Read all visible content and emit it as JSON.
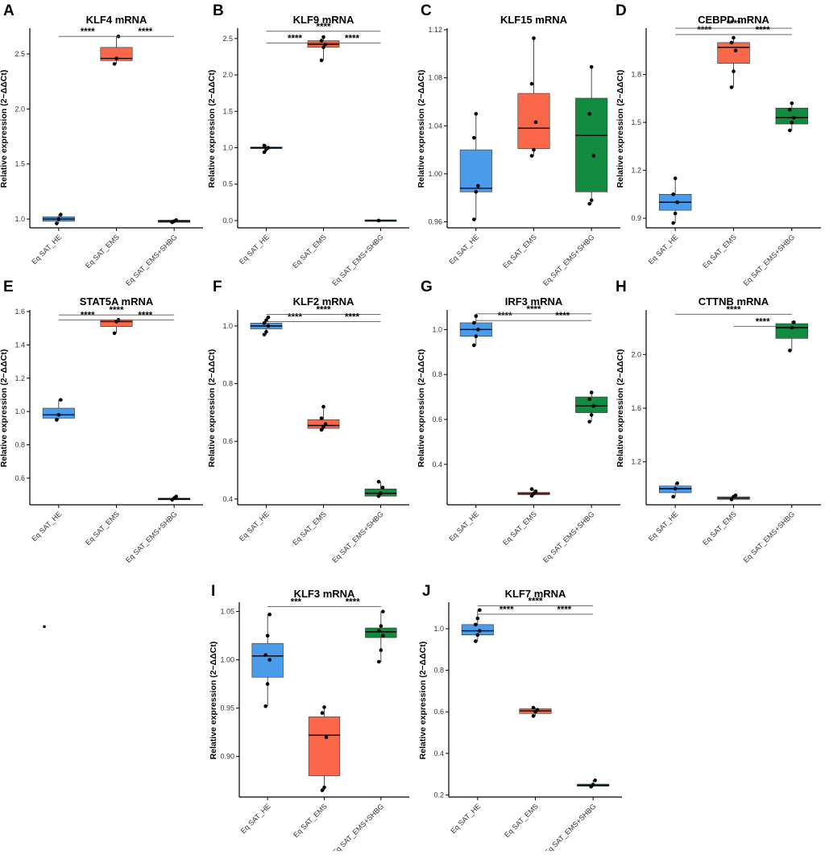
{
  "colors": {
    "group1": "#4a9bea",
    "group2": "#fa6849",
    "group3": "#128a3f",
    "axis": "#000000",
    "bracket": "#555555"
  },
  "stray_mark": ".",
  "panels": [
    {
      "id": "A",
      "title": "KLF4 mRNA",
      "ylabel": "Relative expression (2−ΔΔCt)",
      "categories": [
        "Eq SAT_HE",
        "Eq SAT_EMS",
        "Eq SAT_EMS+SHBG"
      ],
      "ylim": [
        0.92,
        2.72
      ],
      "yticks": [
        1.0,
        1.5,
        2.0,
        2.5
      ],
      "boxes": [
        {
          "q1": 0.98,
          "median": 1.0,
          "q3": 1.02,
          "low": 0.96,
          "high": 1.04,
          "points": [
            0.96,
            1.0,
            1.04
          ]
        },
        {
          "q1": 2.44,
          "median": 2.46,
          "q3": 2.56,
          "low": 2.41,
          "high": 2.66,
          "points": [
            2.41,
            2.46,
            2.66
          ]
        },
        {
          "q1": 0.97,
          "median": 0.98,
          "q3": 0.99,
          "low": 0.97,
          "high": 0.99,
          "points": [
            0.97,
            0.98,
            0.99
          ]
        }
      ],
      "brackets": [
        {
          "from": 0,
          "to": 1,
          "y": 2.66,
          "label": "****"
        },
        {
          "from": 1,
          "to": 2,
          "y": 2.66,
          "label": "****"
        }
      ]
    },
    {
      "id": "B",
      "title": "KLF9 mRNA",
      "ylabel": "Relative expression (2−ΔΔCt)",
      "categories": [
        "Eq SAT_HE",
        "Eq SAT_EMS",
        "Eq SAT_EMS+SHBG"
      ],
      "ylim": [
        -0.1,
        2.62
      ],
      "yticks": [
        0.0,
        0.5,
        1.0,
        1.5,
        2.0,
        2.5
      ],
      "boxes": [
        {
          "q1": 0.99,
          "median": 1.0,
          "q3": 1.01,
          "low": 0.94,
          "high": 1.04,
          "points": [
            0.94,
            0.98,
            1.0,
            1.03
          ]
        },
        {
          "q1": 2.38,
          "median": 2.42,
          "q3": 2.47,
          "low": 2.2,
          "high": 2.52,
          "points": [
            2.2,
            2.38,
            2.42,
            2.47,
            2.52
          ]
        },
        {
          "q1": 0.0,
          "median": 0.0,
          "q3": 0.01,
          "low": 0.0,
          "high": 0.01,
          "points": [
            0.0
          ]
        }
      ],
      "brackets": [
        {
          "from": 0,
          "to": 1,
          "y": 2.44,
          "label": "****"
        },
        {
          "from": 0,
          "to": 2,
          "y": 2.6,
          "label": "****"
        },
        {
          "from": 1,
          "to": 2,
          "y": 2.44,
          "label": "****"
        }
      ]
    },
    {
      "id": "C",
      "title": "KLF15 mRNA",
      "ylabel": "Relative expression (2−ΔΔCt)",
      "categories": [
        "Eq SAT_HE",
        "Eq SAT_EMS",
        "Eq SAT_EMS+SHBG"
      ],
      "ylim": [
        0.955,
        1.12
      ],
      "yticks": [
        0.96,
        1.0,
        1.04,
        1.08,
        1.12
      ],
      "boxes": [
        {
          "q1": 0.985,
          "median": 0.988,
          "q3": 1.02,
          "low": 0.962,
          "high": 1.05,
          "points": [
            0.962,
            0.985,
            0.99,
            1.03,
            1.05
          ]
        },
        {
          "q1": 1.021,
          "median": 1.038,
          "q3": 1.067,
          "low": 1.015,
          "high": 1.113,
          "points": [
            1.015,
            1.02,
            1.043,
            1.075,
            1.113
          ]
        },
        {
          "q1": 0.985,
          "median": 1.032,
          "q3": 1.063,
          "low": 0.975,
          "high": 1.089,
          "points": [
            0.975,
            0.978,
            1.015,
            1.05,
            1.089
          ]
        }
      ],
      "brackets": []
    },
    {
      "id": "D",
      "title": "CEBPD mRNA",
      "ylabel": "Relative expression (2−ΔΔCt)",
      "categories": [
        "Eq SAT_HE",
        "Eq SAT_EMS",
        "Eq SAT_EMS+SHBG"
      ],
      "ylim": [
        0.84,
        2.08
      ],
      "yticks": [
        0.9,
        1.2,
        1.5,
        1.8
      ],
      "boxes": [
        {
          "q1": 0.95,
          "median": 1.0,
          "q3": 1.05,
          "low": 0.87,
          "high": 1.15,
          "points": [
            0.87,
            0.93,
            1.0,
            1.05,
            1.15
          ]
        },
        {
          "q1": 1.87,
          "median": 1.97,
          "q3": 2.0,
          "low": 1.72,
          "high": 2.04,
          "points": [
            1.72,
            1.82,
            1.95,
            2.0,
            2.03
          ]
        },
        {
          "q1": 1.49,
          "median": 1.53,
          "q3": 1.59,
          "low": 1.45,
          "high": 1.63,
          "points": [
            1.45,
            1.5,
            1.53,
            1.58,
            1.62
          ]
        }
      ],
      "brackets": [
        {
          "from": 0,
          "to": 1,
          "y": 2.05,
          "label": "****"
        },
        {
          "from": 0,
          "to": 2,
          "y": 2.09,
          "label": "****"
        },
        {
          "from": 1,
          "to": 2,
          "y": 2.05,
          "label": "****"
        }
      ]
    },
    {
      "id": "E",
      "title": "STAT5A mRNA",
      "ylabel": "Relative expression (2−ΔΔCt)",
      "categories": [
        "Eq SAT_HE",
        "Eq SAT_EMS",
        "Eq SAT_EMS+SHBG"
      ],
      "ylim": [
        0.44,
        1.6
      ],
      "yticks": [
        0.6,
        0.8,
        1.0,
        1.2,
        1.4,
        1.6
      ],
      "boxes": [
        {
          "q1": 0.96,
          "median": 0.98,
          "q3": 1.02,
          "low": 0.95,
          "high": 1.07,
          "points": [
            0.95,
            0.98,
            1.07
          ]
        },
        {
          "q1": 1.51,
          "median": 1.54,
          "q3": 1.55,
          "low": 1.47,
          "high": 1.55,
          "points": [
            1.47,
            1.54,
            1.55
          ]
        },
        {
          "q1": 0.47,
          "median": 0.475,
          "q3": 0.48,
          "low": 0.47,
          "high": 0.49,
          "points": [
            0.47,
            0.48,
            0.49
          ]
        }
      ],
      "brackets": [
        {
          "from": 0,
          "to": 1,
          "y": 1.55,
          "label": "****"
        },
        {
          "from": 0,
          "to": 2,
          "y": 1.58,
          "label": "****"
        },
        {
          "from": 1,
          "to": 2,
          "y": 1.55,
          "label": "****"
        }
      ]
    },
    {
      "id": "F",
      "title": "KLF2 mRNA",
      "ylabel": "Relative expression (2−ΔΔCt)",
      "categories": [
        "Eq SAT_HE",
        "Eq SAT_EMS",
        "Eq SAT_EMS+SHBG"
      ],
      "ylim": [
        0.38,
        1.05
      ],
      "yticks": [
        0.4,
        0.6,
        0.8,
        1.0
      ],
      "boxes": [
        {
          "q1": 0.99,
          "median": 1.0,
          "q3": 1.01,
          "low": 0.97,
          "high": 1.03,
          "points": [
            0.97,
            0.98,
            1.0,
            1.01,
            1.02,
            1.03
          ]
        },
        {
          "q1": 0.645,
          "median": 0.655,
          "q3": 0.675,
          "low": 0.64,
          "high": 0.72,
          "points": [
            0.64,
            0.65,
            0.66,
            0.68,
            0.72
          ]
        },
        {
          "q1": 0.41,
          "median": 0.42,
          "q3": 0.435,
          "low": 0.41,
          "high": 0.46,
          "points": [
            0.41,
            0.42,
            0.44,
            0.46
          ]
        }
      ],
      "brackets": [
        {
          "from": 0,
          "to": 1,
          "y": 1.015,
          "label": "****"
        },
        {
          "from": 0,
          "to": 2,
          "y": 1.04,
          "label": "****"
        },
        {
          "from": 1,
          "to": 2,
          "y": 1.015,
          "label": "****"
        }
      ]
    },
    {
      "id": "G",
      "title": "IRF3 mRNA",
      "ylabel": "Relative expression (2−ΔΔCt)",
      "categories": [
        "Eq SAT_HE",
        "Eq SAT_EMS",
        "Eq SAT_EMS+SHBG"
      ],
      "ylim": [
        0.22,
        1.08
      ],
      "yticks": [
        0.4,
        0.6,
        0.8,
        1.0
      ],
      "boxes": [
        {
          "q1": 0.97,
          "median": 1.0,
          "q3": 1.03,
          "low": 0.93,
          "high": 1.06,
          "points": [
            0.93,
            0.97,
            1.0,
            1.03,
            1.06
          ]
        },
        {
          "q1": 0.265,
          "median": 0.27,
          "q3": 0.275,
          "low": 0.26,
          "high": 0.29,
          "points": [
            0.26,
            0.27,
            0.28,
            0.29
          ]
        },
        {
          "q1": 0.63,
          "median": 0.66,
          "q3": 0.7,
          "low": 0.59,
          "high": 0.72,
          "points": [
            0.59,
            0.62,
            0.66,
            0.69,
            0.72
          ]
        }
      ],
      "brackets": [
        {
          "from": 0,
          "to": 1,
          "y": 1.04,
          "label": "****"
        },
        {
          "from": 0,
          "to": 2,
          "y": 1.07,
          "label": "****"
        },
        {
          "from": 1,
          "to": 2,
          "y": 1.04,
          "label": "****"
        }
      ]
    },
    {
      "id": "H",
      "title": "CTTNB mRNA",
      "ylabel": "Relative expression (2−ΔΔCt)",
      "categories": [
        "Eq SAT_HE",
        "Eq SAT_EMS",
        "Eq SAT_EMS+SHBG"
      ],
      "ylim": [
        0.88,
        2.32
      ],
      "yticks": [
        1.2,
        1.6,
        2.0
      ],
      "boxes": [
        {
          "q1": 0.97,
          "median": 1.0,
          "q3": 1.02,
          "low": 0.94,
          "high": 1.04,
          "points": [
            0.94,
            1.0,
            1.04
          ]
        },
        {
          "q1": 0.92,
          "median": 0.93,
          "q3": 0.94,
          "low": 0.92,
          "high": 0.95,
          "points": [
            0.92,
            0.94,
            0.95
          ]
        },
        {
          "q1": 2.12,
          "median": 2.2,
          "q3": 2.23,
          "low": 2.03,
          "high": 2.25,
          "points": [
            2.03,
            2.2,
            2.24
          ]
        }
      ],
      "brackets": [
        {
          "from": 0,
          "to": 2,
          "y": 2.3,
          "label": "****"
        },
        {
          "from": 1,
          "to": 2,
          "y": 2.21,
          "label": "****"
        }
      ]
    },
    {
      "id": "I",
      "title": "KLF3 mRNA",
      "ylabel": "Relative expression (2−ΔΔCt)",
      "categories": [
        "Eq SAT_HE",
        "Eq SAT_EMS",
        "Eq SAT_EMS+SHBG"
      ],
      "ylim": [
        0.858,
        1.058
      ],
      "yticks": [
        0.9,
        0.95,
        1.0,
        1.05
      ],
      "boxes": [
        {
          "q1": 0.982,
          "median": 1.004,
          "q3": 1.017,
          "low": 0.952,
          "high": 1.047,
          "points": [
            0.952,
            0.975,
            1.0,
            1.005,
            1.025,
            1.047
          ]
        },
        {
          "q1": 0.88,
          "median": 0.922,
          "q3": 0.941,
          "low": 0.865,
          "high": 0.951,
          "points": [
            0.865,
            0.868,
            0.92,
            0.945,
            0.951
          ]
        },
        {
          "q1": 1.023,
          "median": 1.029,
          "q3": 1.033,
          "low": 0.998,
          "high": 1.05,
          "points": [
            0.998,
            1.01,
            1.025,
            1.03,
            1.035,
            1.05
          ]
        }
      ],
      "brackets": [
        {
          "from": 0,
          "to": 1,
          "y": 1.055,
          "label": "***"
        },
        {
          "from": 1,
          "to": 2,
          "y": 1.055,
          "label": "****"
        }
      ]
    },
    {
      "id": "J",
      "title": "KLF7 mRNA",
      "ylabel": "Relative expression (2−ΔΔCt)",
      "categories": [
        "Eq SAT_HE",
        "Eq SAT_EMS",
        "Eq SAT_EMS+SHBG"
      ],
      "ylim": [
        0.19,
        1.12
      ],
      "yticks": [
        0.2,
        0.4,
        0.6,
        0.8,
        1.0
      ],
      "boxes": [
        {
          "q1": 0.97,
          "median": 0.99,
          "q3": 1.02,
          "low": 0.94,
          "high": 1.09,
          "points": [
            0.94,
            0.97,
            0.99,
            1.02,
            1.05,
            1.09
          ]
        },
        {
          "q1": 0.592,
          "median": 0.605,
          "q3": 0.615,
          "low": 0.58,
          "high": 0.62,
          "points": [
            0.58,
            0.6,
            0.61,
            0.62
          ]
        },
        {
          "q1": 0.242,
          "median": 0.247,
          "q3": 0.252,
          "low": 0.24,
          "high": 0.27,
          "points": [
            0.24,
            0.25,
            0.27
          ]
        }
      ],
      "brackets": [
        {
          "from": 0,
          "to": 1,
          "y": 1.07,
          "label": "****"
        },
        {
          "from": 0,
          "to": 2,
          "y": 1.11,
          "label": "****"
        },
        {
          "from": 1,
          "to": 2,
          "y": 1.07,
          "label": "****"
        }
      ]
    }
  ],
  "chart_data": [
    {
      "type": "box",
      "title": "KLF4 mRNA",
      "ylabel": "Relative expression (2−ΔΔCt)",
      "categories": [
        "Eq SAT_HE",
        "Eq SAT_EMS",
        "Eq SAT_EMS+SHBG"
      ],
      "medians": [
        1.0,
        2.46,
        0.98
      ]
    },
    {
      "type": "box",
      "title": "KLF9 mRNA",
      "ylabel": "Relative expression (2−ΔΔCt)",
      "categories": [
        "Eq SAT_HE",
        "Eq SAT_EMS",
        "Eq SAT_EMS+SHBG"
      ],
      "medians": [
        1.0,
        2.42,
        0.0
      ]
    },
    {
      "type": "box",
      "title": "KLF15 mRNA",
      "ylabel": "Relative expression (2−ΔΔCt)",
      "categories": [
        "Eq SAT_HE",
        "Eq SAT_EMS",
        "Eq SAT_EMS+SHBG"
      ],
      "medians": [
        0.988,
        1.038,
        1.032
      ]
    },
    {
      "type": "box",
      "title": "CEBPD mRNA",
      "ylabel": "Relative expression (2−ΔΔCt)",
      "categories": [
        "Eq SAT_HE",
        "Eq SAT_EMS",
        "Eq SAT_EMS+SHBG"
      ],
      "medians": [
        1.0,
        1.97,
        1.53
      ]
    },
    {
      "type": "box",
      "title": "STAT5A mRNA",
      "ylabel": "Relative expression (2−ΔΔCt)",
      "categories": [
        "Eq SAT_HE",
        "Eq SAT_EMS",
        "Eq SAT_EMS+SHBG"
      ],
      "medians": [
        0.98,
        1.54,
        0.475
      ]
    },
    {
      "type": "box",
      "title": "KLF2 mRNA",
      "ylabel": "Relative expression (2−ΔΔCt)",
      "categories": [
        "Eq SAT_HE",
        "Eq SAT_EMS",
        "Eq SAT_EMS+SHBG"
      ],
      "medians": [
        1.0,
        0.655,
        0.42
      ]
    },
    {
      "type": "box",
      "title": "IRF3 mRNA",
      "ylabel": "Relative expression (2−ΔΔCt)",
      "categories": [
        "Eq SAT_HE",
        "Eq SAT_EMS",
        "Eq SAT_EMS+SHBG"
      ],
      "medians": [
        1.0,
        0.27,
        0.66
      ]
    },
    {
      "type": "box",
      "title": "CTTNB mRNA",
      "ylabel": "Relative expression (2−ΔΔCt)",
      "categories": [
        "Eq SAT_HE",
        "Eq SAT_EMS",
        "Eq SAT_EMS+SHBG"
      ],
      "medians": [
        1.0,
        0.93,
        2.2
      ]
    },
    {
      "type": "box",
      "title": "KLF3 mRNA",
      "ylabel": "Relative expression (2−ΔΔCt)",
      "categories": [
        "Eq SAT_HE",
        "Eq SAT_EMS",
        "Eq SAT_EMS+SHBG"
      ],
      "medians": [
        1.004,
        0.922,
        1.029
      ]
    },
    {
      "type": "box",
      "title": "KLF7 mRNA",
      "ylabel": "Relative expression (2−ΔΔCt)",
      "categories": [
        "Eq SAT_HE",
        "Eq SAT_EMS",
        "Eq SAT_EMS+SHBG"
      ],
      "medians": [
        0.99,
        0.605,
        0.247
      ]
    }
  ]
}
